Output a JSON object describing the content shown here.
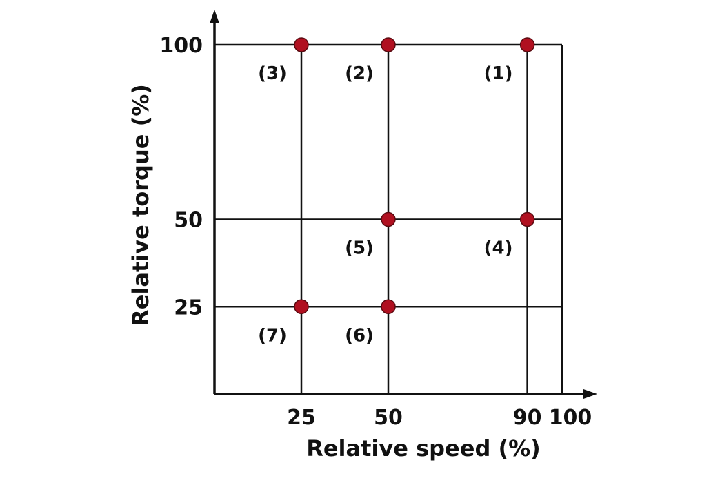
{
  "chart_data": {
    "type": "scatter",
    "xlabel": "Relative speed (%)",
    "ylabel": "Relative torque (%)",
    "xlim": [
      0,
      100
    ],
    "ylim": [
      0,
      100
    ],
    "x_ticks": [
      "25",
      "50",
      "90",
      "100"
    ],
    "y_ticks": [
      "100",
      "50",
      "25"
    ],
    "grid_x": [
      25,
      50,
      90,
      100
    ],
    "grid_y": [
      25,
      50,
      100
    ],
    "points": [
      {
        "label": "(1)",
        "x": 90,
        "y": 100
      },
      {
        "label": "(2)",
        "x": 50,
        "y": 100
      },
      {
        "label": "(3)",
        "x": 25,
        "y": 100
      },
      {
        "label": "(4)",
        "x": 90,
        "y": 50
      },
      {
        "label": "(5)",
        "x": 50,
        "y": 50
      },
      {
        "label": "(6)",
        "x": 50,
        "y": 25
      },
      {
        "label": "(7)",
        "x": 25,
        "y": 25
      }
    ],
    "marker_color": "#b01020",
    "line_color": "#111111"
  }
}
